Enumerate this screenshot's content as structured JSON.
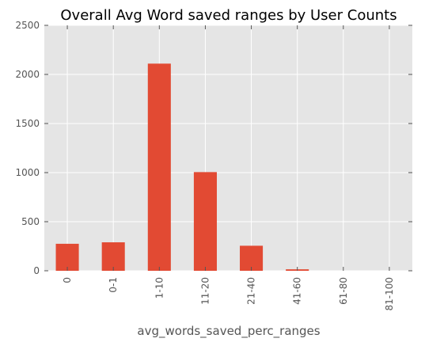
{
  "chart_data": {
    "type": "bar",
    "title": "Overall Avg Word saved ranges by User Counts",
    "xlabel": "avg_words_saved_perc_ranges",
    "ylabel": "",
    "categories": [
      "0",
      "0-1",
      "1-10",
      "11-20",
      "21-40",
      "41-60",
      "61-80",
      "81-100"
    ],
    "values": [
      275,
      290,
      2110,
      1005,
      255,
      15,
      0,
      0
    ],
    "ylim": [
      0,
      2500
    ],
    "yticks": [
      0,
      500,
      1000,
      1500,
      2000,
      2500
    ],
    "grid": true,
    "legend": "none",
    "colors": {
      "bar": "#E24A33",
      "background": "#E5E5E5",
      "grid": "#FFFFFF",
      "tick_text": "#555555",
      "tick_mark": "#555555"
    }
  }
}
